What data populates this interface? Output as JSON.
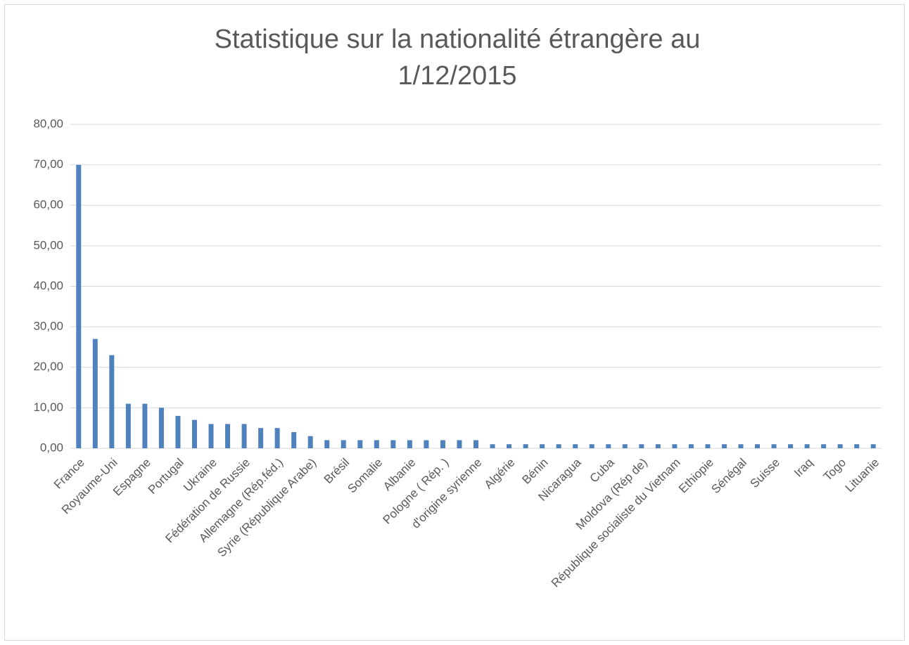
{
  "chart_data": {
    "type": "bar",
    "title": "Statistique sur la nationalité étrangère au 1/12/2015",
    "categories": [
      "France",
      null,
      "Royaume-Uni",
      null,
      "Espagne",
      null,
      "Portugal",
      null,
      "Ukraine",
      null,
      "Fédération de Russie",
      null,
      "Allemagne (Rép.féd.)",
      null,
      "Syrie (République Arabe)",
      null,
      "Brésil",
      null,
      "Somalie",
      null,
      "Albanie",
      null,
      "Pologne ( Rép. )",
      null,
      "d'origine syrienne",
      null,
      "Algérie",
      null,
      "Bénin",
      null,
      "Nicaragua",
      null,
      "Cuba",
      null,
      "Moldova (Rép de)",
      null,
      "République socialiste du Vietnam",
      null,
      "Ethiopie",
      null,
      "Sénégal",
      null,
      "Suisse",
      null,
      "Iraq",
      null,
      "Togo",
      null,
      "Lituanie"
    ],
    "values": [
      70,
      27,
      23,
      11,
      11,
      10,
      8,
      7,
      6,
      6,
      6,
      5,
      5,
      4,
      3,
      2,
      2,
      2,
      2,
      2,
      2,
      2,
      2,
      2,
      2,
      1,
      1,
      1,
      1,
      1,
      1,
      1,
      1,
      1,
      1,
      1,
      1,
      1,
      1,
      1,
      1,
      1,
      1,
      1,
      1,
      1,
      1,
      1,
      1
    ],
    "color": "#4f81bd",
    "ylim": [
      0,
      80
    ],
    "yticks": [
      {
        "value": 0,
        "label": "0,00"
      },
      {
        "value": 10,
        "label": "10,00"
      },
      {
        "value": 20,
        "label": "20,00"
      },
      {
        "value": 30,
        "label": "30,00"
      },
      {
        "value": 40,
        "label": "40,00"
      },
      {
        "value": 50,
        "label": "50,00"
      },
      {
        "value": 60,
        "label": "60,00"
      },
      {
        "value": 70,
        "label": "70,00"
      },
      {
        "value": 80,
        "label": "80,00"
      }
    ],
    "grid": true
  }
}
